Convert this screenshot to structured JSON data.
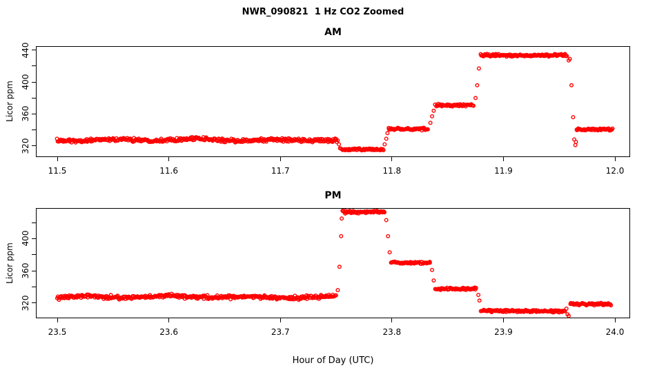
{
  "title": "NWR_090821  1 Hz CO2 Zoomed",
  "xlabel": "Hour of Day (UTC)",
  "marker_color": "#ff0000",
  "chart_data": [
    {
      "type": "scatter",
      "panel": "AM",
      "title": "AM",
      "ylabel": "Licor ppm",
      "sample_rate_hz": 1,
      "marker": "open-circle",
      "color": "#ff0000",
      "legend": "none",
      "grid": false,
      "xlim": [
        11.4808,
        12.0136
      ],
      "ylim": [
        306,
        445
      ],
      "xticks": [
        11.5,
        11.6,
        11.7,
        11.8,
        11.9,
        12.0
      ],
      "xtick_labels": [
        "11.5",
        "11.6",
        "11.7",
        "11.8",
        "11.9",
        "12.0"
      ],
      "yticks": [
        320,
        340,
        360,
        380,
        400,
        420,
        440
      ],
      "ytick_labels": [
        "320",
        "",
        "360",
        "",
        "400",
        "",
        "440"
      ],
      "segments": [
        {
          "t0": 11.5,
          "t1": 11.7515,
          "level": 327.5,
          "noise": 1.1,
          "label": "ambient plateau ~327 ppm"
        },
        {
          "t0": 11.7545,
          "t1": 11.7925,
          "level": 315.5,
          "noise": 0.7,
          "label": "step ~315 ppm"
        },
        {
          "t0": 11.797,
          "t1": 11.833,
          "level": 341.0,
          "noise": 0.7,
          "label": "step ~341 ppm"
        },
        {
          "t0": 11.839,
          "t1": 11.8735,
          "level": 371.0,
          "noise": 0.7,
          "label": "step ~371 ppm"
        },
        {
          "t0": 11.8795,
          "t1": 11.9575,
          "level": 433.5,
          "noise": 0.8,
          "label": "step ~433 ppm"
        },
        {
          "t0": 11.9655,
          "t1": 11.998,
          "level": 340.5,
          "noise": 0.7,
          "label": "post-step plateau ~340 ppm"
        }
      ],
      "transition_points": [
        {
          "t": 11.7525,
          "v": 322
        },
        {
          "t": 11.7535,
          "v": 317
        },
        {
          "t": 11.7935,
          "v": 322
        },
        {
          "t": 11.795,
          "v": 329
        },
        {
          "t": 11.796,
          "v": 336
        },
        {
          "t": 11.8345,
          "v": 349
        },
        {
          "t": 11.836,
          "v": 357
        },
        {
          "t": 11.8375,
          "v": 364
        },
        {
          "t": 11.875,
          "v": 380
        },
        {
          "t": 11.8765,
          "v": 396
        },
        {
          "t": 11.878,
          "v": 417
        },
        {
          "t": 11.9585,
          "v": 427
        },
        {
          "t": 11.9595,
          "v": 429
        },
        {
          "t": 11.961,
          "v": 396
        },
        {
          "t": 11.9625,
          "v": 356
        },
        {
          "t": 11.9635,
          "v": 328
        },
        {
          "t": 11.9645,
          "v": 321
        },
        {
          "t": 11.965,
          "v": 325
        }
      ]
    },
    {
      "type": "scatter",
      "panel": "PM",
      "title": "PM",
      "ylabel": "Licor ppm",
      "sample_rate_hz": 1,
      "marker": "open-circle",
      "color": "#ff0000",
      "legend": "none",
      "grid": false,
      "xlim": [
        23.4808,
        24.0136
      ],
      "ylim": [
        301,
        438
      ],
      "xticks": [
        23.5,
        23.6,
        23.7,
        23.8,
        23.9,
        24.0
      ],
      "xtick_labels": [
        "23.5",
        "23.6",
        "23.7",
        "23.8",
        "23.9",
        "24.0"
      ],
      "yticks": [
        320,
        340,
        360,
        380,
        400,
        420
      ],
      "ytick_labels": [
        "320",
        "",
        "360",
        "",
        "400",
        ""
      ],
      "segments": [
        {
          "t0": 23.5,
          "t1": 23.75,
          "level": 327.5,
          "noise": 1.1,
          "label": "ambient plateau ~327 ppm"
        },
        {
          "t0": 23.7555,
          "t1": 23.7935,
          "level": 433.0,
          "noise": 0.8,
          "label": "step ~433 ppm"
        },
        {
          "t0": 23.799,
          "t1": 23.8345,
          "level": 370.0,
          "noise": 0.7,
          "label": "step ~370 ppm"
        },
        {
          "t0": 23.839,
          "t1": 23.876,
          "level": 337.5,
          "noise": 0.7,
          "label": "step ~337 ppm"
        },
        {
          "t0": 23.88,
          "t1": 23.9555,
          "level": 310.0,
          "noise": 0.7,
          "label": "step ~310 ppm"
        },
        {
          "t0": 23.96,
          "t1": 23.997,
          "level": 318.5,
          "noise": 0.7,
          "label": "post-step plateau ~318 ppm"
        }
      ],
      "transition_points": [
        {
          "t": 23.7515,
          "v": 336
        },
        {
          "t": 23.753,
          "v": 365
        },
        {
          "t": 23.7545,
          "v": 403
        },
        {
          "t": 23.755,
          "v": 425
        },
        {
          "t": 23.795,
          "v": 423
        },
        {
          "t": 23.7965,
          "v": 403
        },
        {
          "t": 23.798,
          "v": 383
        },
        {
          "t": 23.836,
          "v": 361
        },
        {
          "t": 23.8375,
          "v": 348
        },
        {
          "t": 23.8775,
          "v": 330
        },
        {
          "t": 23.8785,
          "v": 323
        },
        {
          "t": 23.9565,
          "v": 313
        },
        {
          "t": 23.9575,
          "v": 306
        },
        {
          "t": 23.9585,
          "v": 304
        }
      ]
    }
  ]
}
